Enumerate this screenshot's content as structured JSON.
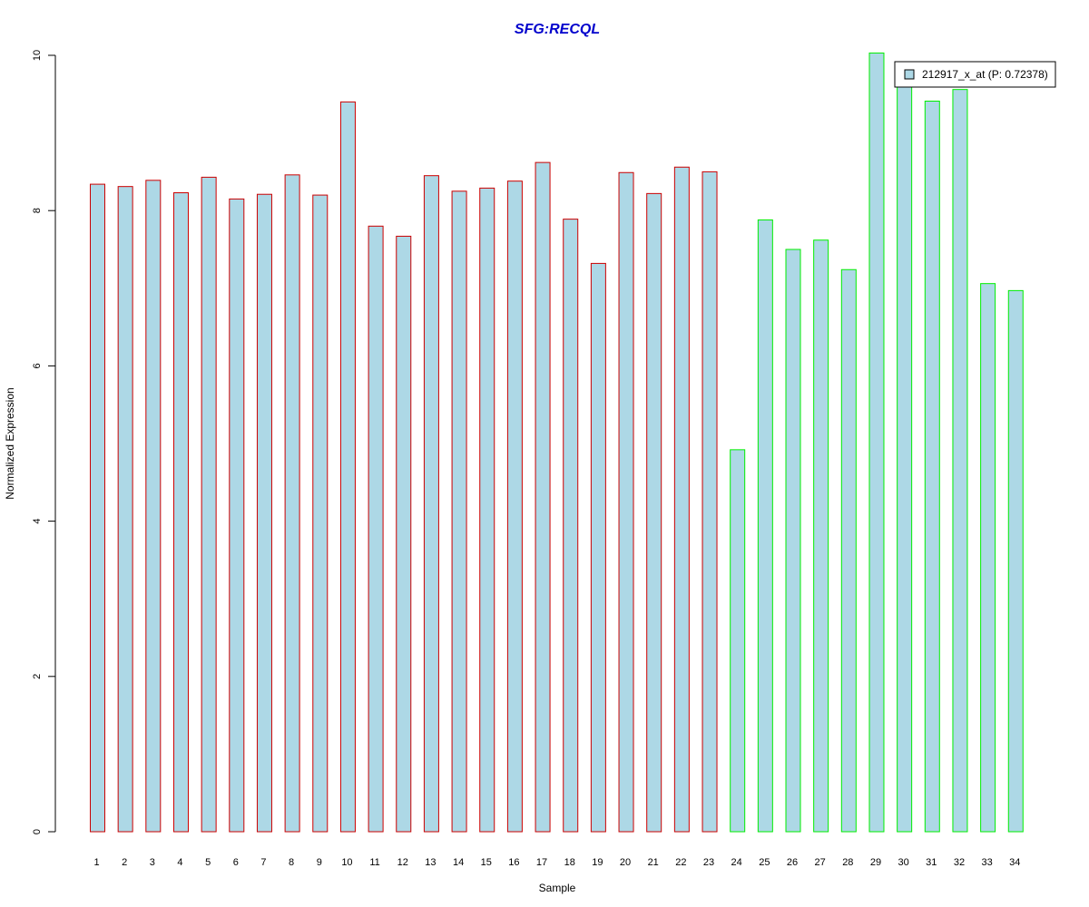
{
  "colors": {
    "title": "#0000cc",
    "bar_fill": "#add8e6",
    "group1_border": "#cc0000",
    "group2_border": "#00ee00",
    "axis": "#000000"
  },
  "chart_data": {
    "type": "bar",
    "title": "SFG:RECQL",
    "xlabel": "Sample",
    "ylabel": "Normalized Expression",
    "ylim": [
      0,
      10
    ],
    "yticks": [
      0,
      2,
      4,
      6,
      8,
      10
    ],
    "grid": false,
    "legend_position": "top-right",
    "legend": [
      "212917_x_at (P: 0.72378)"
    ],
    "categories": [
      "1",
      "2",
      "3",
      "4",
      "5",
      "6",
      "7",
      "8",
      "9",
      "10",
      "11",
      "12",
      "13",
      "14",
      "15",
      "16",
      "17",
      "18",
      "19",
      "20",
      "21",
      "22",
      "23",
      "24",
      "25",
      "26",
      "27",
      "28",
      "29",
      "30",
      "31",
      "32",
      "33",
      "34"
    ],
    "series": [
      {
        "name": "212917_x_at (P: 0.72378)",
        "values": [
          8.34,
          8.31,
          8.39,
          8.23,
          8.43,
          8.15,
          8.21,
          8.46,
          8.2,
          9.4,
          7.8,
          7.67,
          8.45,
          8.25,
          8.29,
          8.38,
          8.62,
          7.89,
          7.32,
          8.49,
          8.22,
          8.56,
          8.5,
          4.92,
          7.88,
          7.5,
          7.62,
          7.24,
          10.03,
          9.63,
          9.41,
          9.56,
          7.06,
          6.97
        ]
      }
    ],
    "groups": [
      1,
      1,
      1,
      1,
      1,
      1,
      1,
      1,
      1,
      1,
      1,
      1,
      1,
      1,
      1,
      1,
      1,
      1,
      1,
      1,
      1,
      1,
      1,
      2,
      2,
      2,
      2,
      2,
      2,
      2,
      2,
      2,
      2,
      2
    ]
  }
}
